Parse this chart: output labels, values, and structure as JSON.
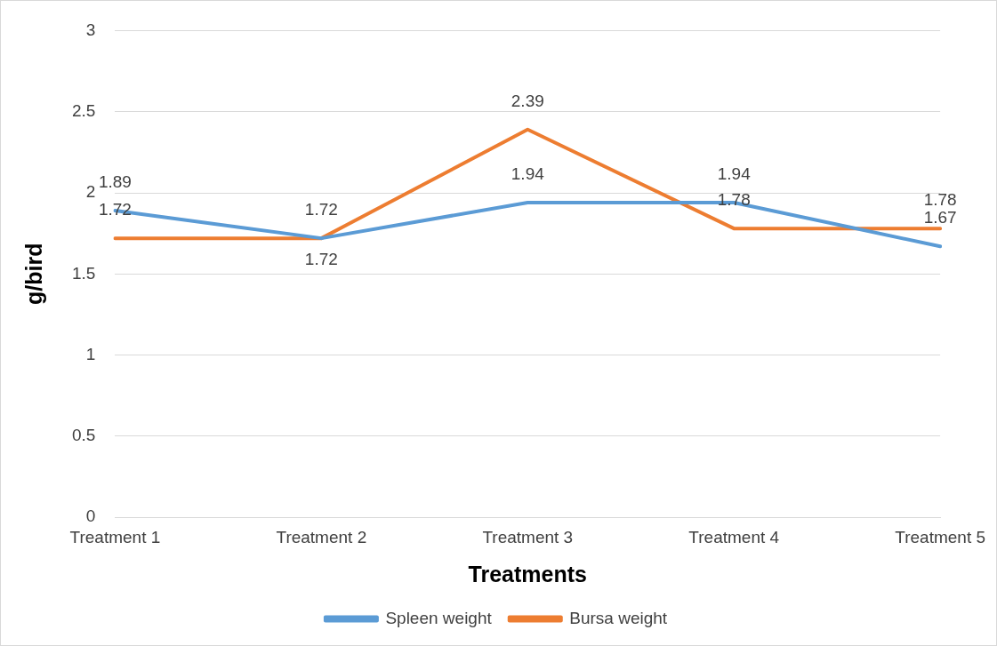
{
  "chart_data": {
    "type": "line",
    "xlabel": "Treatments",
    "ylabel": "g/bird",
    "categories": [
      "Treatment 1",
      "Treatment 2",
      "Treatment 3",
      "Treatment 4",
      "Treatment 5"
    ],
    "series": [
      {
        "name": "Spleen weight",
        "color": "#5b9bd5",
        "values": [
          1.89,
          1.72,
          1.94,
          1.94,
          1.67
        ]
      },
      {
        "name": "Bursa weight",
        "color": "#ed7d31",
        "values": [
          1.72,
          1.72,
          2.39,
          1.78,
          1.78
        ]
      }
    ],
    "ylim": [
      0,
      3
    ],
    "yticks": [
      0,
      0.5,
      1,
      1.5,
      2,
      2.5,
      3
    ],
    "grid": "y",
    "legend": "bottom",
    "data_labels": true,
    "marker": "none",
    "line_style": "solid"
  }
}
